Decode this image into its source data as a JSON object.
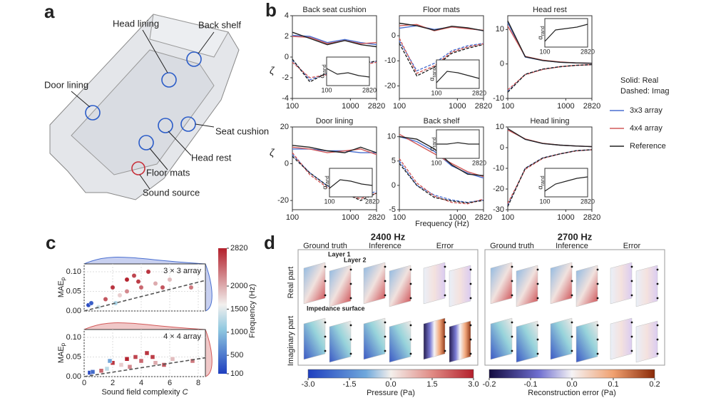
{
  "a": {
    "label": "a",
    "parts": [
      "Back shelf",
      "Head lining",
      "Door lining",
      "Seat cushion",
      "Head rest",
      "Floor mats",
      "Sound source"
    ]
  },
  "b": {
    "label": "b",
    "type": "line",
    "x": [
      100,
      200,
      400,
      800,
      1500,
      2820
    ],
    "xlim": [
      100,
      2820
    ],
    "xticks": [
      100,
      1000,
      2820
    ],
    "log_x": true,
    "ylabel": "ζ",
    "xlabel": "Frequency (Hz)",
    "legend_notes": [
      "Solid: Real",
      "Dashed: Imag"
    ],
    "legend": [
      {
        "name": "3x3 array",
        "color": "#4a6fd0"
      },
      {
        "name": "4x4 array",
        "color": "#d25a5a"
      },
      {
        "name": "Reference",
        "color": "#222222"
      }
    ],
    "inset_ylabel": "α",
    "inset_ylabel_sub": "rand",
    "inset_xticks": [
      100,
      2820
    ],
    "inset_ylim": [
      0,
      1
    ],
    "plots": [
      {
        "title": "Back seat cushion",
        "ylim": [
          -4,
          4
        ],
        "yticks": [
          -4,
          -2,
          0,
          2,
          4
        ],
        "real": [
          [
            2.1,
            2.0,
            1.4,
            1.7,
            1.4,
            1.2
          ],
          [
            2.0,
            1.9,
            1.3,
            1.6,
            1.3,
            1.4
          ],
          [
            2.4,
            1.8,
            1.2,
            1.6,
            1.2,
            1.0
          ]
        ],
        "imag": [
          [
            -0.3,
            -2.2,
            -1.6,
            -1.1,
            -0.7,
            -0.4
          ],
          [
            -0.5,
            -2.0,
            -1.7,
            -1.2,
            -0.8,
            -0.5
          ],
          [
            -0.2,
            -2.4,
            -1.5,
            -1.0,
            -0.6,
            -0.4
          ]
        ],
        "inset": [
          0.6,
          0.4,
          0.45,
          0.35,
          0.3
        ]
      },
      {
        "title": "Floor mats",
        "ylim": [
          -25,
          8
        ],
        "yticks": [
          -20,
          -10,
          0
        ],
        "real": [
          [
            3,
            4,
            2.5,
            3.5,
            3,
            2
          ],
          [
            4,
            4.5,
            2,
            3.5,
            2.8,
            2.2
          ],
          [
            5,
            4,
            2.2,
            3.8,
            3.2,
            2
          ]
        ],
        "imag": [
          [
            -2,
            -14,
            -11,
            -6,
            -4,
            -3
          ],
          [
            -1,
            -15,
            -12,
            -6.5,
            -4.5,
            -3.2
          ],
          [
            -3,
            -16,
            -12.5,
            -7,
            -5,
            -3.5
          ]
        ],
        "inset": [
          0.2,
          0.6,
          0.55,
          0.45,
          0.35
        ]
      },
      {
        "title": "Head rest",
        "ylim": [
          -10,
          14
        ],
        "yticks": [
          -10,
          0,
          10
        ],
        "real": [
          [
            12,
            2,
            1,
            0.5,
            0.3,
            0.2
          ],
          [
            11,
            2.2,
            1.1,
            0.6,
            0.3,
            0.2
          ],
          [
            12.5,
            2.1,
            1,
            0.5,
            0.3,
            0.2
          ]
        ],
        "imag": [
          [
            -8,
            -3,
            -1.5,
            -0.8,
            -0.4,
            -0.2
          ],
          [
            -7.5,
            -3.1,
            -1.6,
            -0.8,
            -0.4,
            -0.2
          ],
          [
            -8.2,
            -3,
            -1.5,
            -0.8,
            -0.4,
            -0.2
          ]
        ],
        "inset": [
          0.2,
          0.6,
          0.65,
          0.7,
          0.8
        ]
      },
      {
        "title": "Door lining",
        "ylim": [
          -25,
          20
        ],
        "yticks": [
          -20,
          0,
          20
        ],
        "real": [
          [
            8,
            8,
            7,
            7,
            6,
            6
          ],
          [
            9,
            8,
            6,
            7,
            8,
            5
          ],
          [
            10,
            9,
            7,
            6,
            9,
            6
          ]
        ],
        "imag": [
          [
            5,
            -5,
            -12,
            -16,
            -18,
            -15
          ],
          [
            6,
            -6,
            -13,
            -17,
            -19,
            -16
          ],
          [
            4,
            -5,
            -12,
            -16,
            -20,
            -16
          ]
        ],
        "inset": [
          0.3,
          0.6,
          0.55,
          0.45,
          0.4
        ]
      },
      {
        "title": "Back shelf",
        "ylim": [
          -5,
          12
        ],
        "yticks": [
          -5,
          0,
          5,
          10
        ],
        "real": [
          [
            10,
            9,
            7,
            4,
            2.5,
            1.5
          ],
          [
            10.5,
            8.5,
            6.5,
            4.5,
            2.8,
            1.8
          ],
          [
            10,
            9.5,
            7.5,
            4.2,
            2.3,
            2
          ]
        ],
        "imag": [
          [
            5,
            0,
            -2,
            -3,
            -3.5,
            -3
          ],
          [
            5.5,
            0.5,
            -2.2,
            -3.5,
            -3.8,
            -2.8
          ],
          [
            4.5,
            0,
            -2.5,
            -3.2,
            -3.6,
            -3.1
          ]
        ],
        "inset": [
          0.5,
          0.5,
          0.55,
          0.5,
          0.5
        ]
      },
      {
        "title": "Head lining",
        "ylim": [
          -30,
          10
        ],
        "yticks": [
          -30,
          -20,
          -10,
          0,
          10
        ],
        "real": [
          [
            9,
            4,
            2,
            1.2,
            0.8,
            0.5
          ],
          [
            8.5,
            4.2,
            2.1,
            1.2,
            0.8,
            0.5
          ],
          [
            9.2,
            4,
            2,
            1.2,
            0.8,
            0.5
          ]
        ],
        "imag": [
          [
            -28,
            -10,
            -5,
            -3,
            -1.5,
            -1
          ],
          [
            -27,
            -10.5,
            -5.2,
            -3,
            -1.6,
            -1
          ],
          [
            -28.5,
            -10,
            -5,
            -3,
            -1.5,
            -1
          ]
        ],
        "inset": [
          0.2,
          0.45,
          0.55,
          0.65,
          0.7
        ]
      }
    ]
  },
  "c": {
    "label": "c",
    "type": "scatter",
    "xlabel": "Sound field complexity ",
    "xlabel_var": "C",
    "ylabel": "MAE",
    "ylabel_sub": "p",
    "xlim": [
      0,
      8.5
    ],
    "xticks": [
      0,
      2,
      4,
      6,
      8
    ],
    "ylim": [
      0,
      0.12
    ],
    "yticks": [
      {
        "value": 0,
        "label": "0.00"
      },
      {
        "value": 0.05,
        "label": "0.05"
      },
      {
        "value": 0.1,
        "label": "0.10"
      }
    ],
    "colorbar": {
      "label": "Frequency (Hz)",
      "lim": [
        100,
        2820
      ],
      "ticks": [
        100,
        500,
        1000,
        1500,
        2000,
        2820
      ]
    },
    "plots": [
      {
        "name": "3 × 3 array",
        "marker": "circle",
        "x": [
          0.3,
          0.5,
          1,
          1.5,
          2,
          2.5,
          3,
          3,
          3.5,
          4,
          4.5,
          5,
          5.5,
          6,
          7.5,
          2.2,
          3.8
        ],
        "values": [
          0.015,
          0.02,
          0.01,
          0.03,
          0.06,
          0.04,
          0.08,
          0.05,
          0.09,
          0.06,
          0.1,
          0.07,
          0.06,
          0.08,
          0.06,
          0.02,
          0.075
        ],
        "freq": [
          200,
          300,
          1400,
          2500,
          2700,
          1800,
          2800,
          2200,
          2600,
          2400,
          2700,
          2000,
          2500,
          1900,
          2300,
          1200,
          2650
        ],
        "trend": {
          "x": [
            0,
            8.5
          ],
          "values": [
            0,
            0.078
          ]
        }
      },
      {
        "name": "4 × 4 array",
        "marker": "square",
        "x": [
          0.4,
          0.6,
          1.2,
          1.6,
          2,
          2.6,
          3,
          3.2,
          3.6,
          4,
          4.4,
          5,
          5.6,
          6.2,
          7.6,
          1.8,
          4.8
        ],
        "values": [
          0.01,
          0.012,
          0.015,
          0.02,
          0.035,
          0.03,
          0.045,
          0.025,
          0.05,
          0.04,
          0.06,
          0.035,
          0.03,
          0.045,
          0.04,
          0.04,
          0.05
        ],
        "freq": [
          150,
          400,
          2400,
          1300,
          2700,
          1800,
          2800,
          2200,
          2600,
          2400,
          2700,
          2000,
          2500,
          1900,
          2300,
          800,
          2650
        ],
        "trend": {
          "x": [
            0,
            8.5
          ],
          "values": [
            0,
            0.048
          ]
        }
      }
    ]
  },
  "d": {
    "label": "d",
    "freqs": [
      "2400 Hz",
      "2700 Hz"
    ],
    "columns": [
      "Ground truth",
      "Inference",
      "Error"
    ],
    "rows": [
      "Real part",
      "Imaginary part"
    ],
    "annotations": [
      "Layer 1",
      "Layer 2",
      "Impedance surface"
    ],
    "colorbars": [
      {
        "label": "Pressure (Pa)",
        "ticks": [
          {
            "value": -3,
            "label": "-3.0"
          },
          {
            "value": -1.5,
            "label": "-1.5"
          },
          {
            "value": 0,
            "label": "0.0"
          },
          {
            "value": 1.5,
            "label": "1.5"
          },
          {
            "value": 3,
            "label": "3.0"
          }
        ],
        "lim": [
          -3,
          3
        ]
      },
      {
        "label": "Reconstruction error (Pa)",
        "ticks": [
          {
            "value": -0.2,
            "label": "-0.2"
          },
          {
            "value": -0.1,
            "label": "-0.1"
          },
          {
            "value": 0,
            "label": "0.0"
          },
          {
            "value": 0.1,
            "label": "0.1"
          },
          {
            "value": 0.2,
            "label": "0.2"
          }
        ],
        "lim": [
          -0.2,
          0.2
        ]
      }
    ]
  }
}
